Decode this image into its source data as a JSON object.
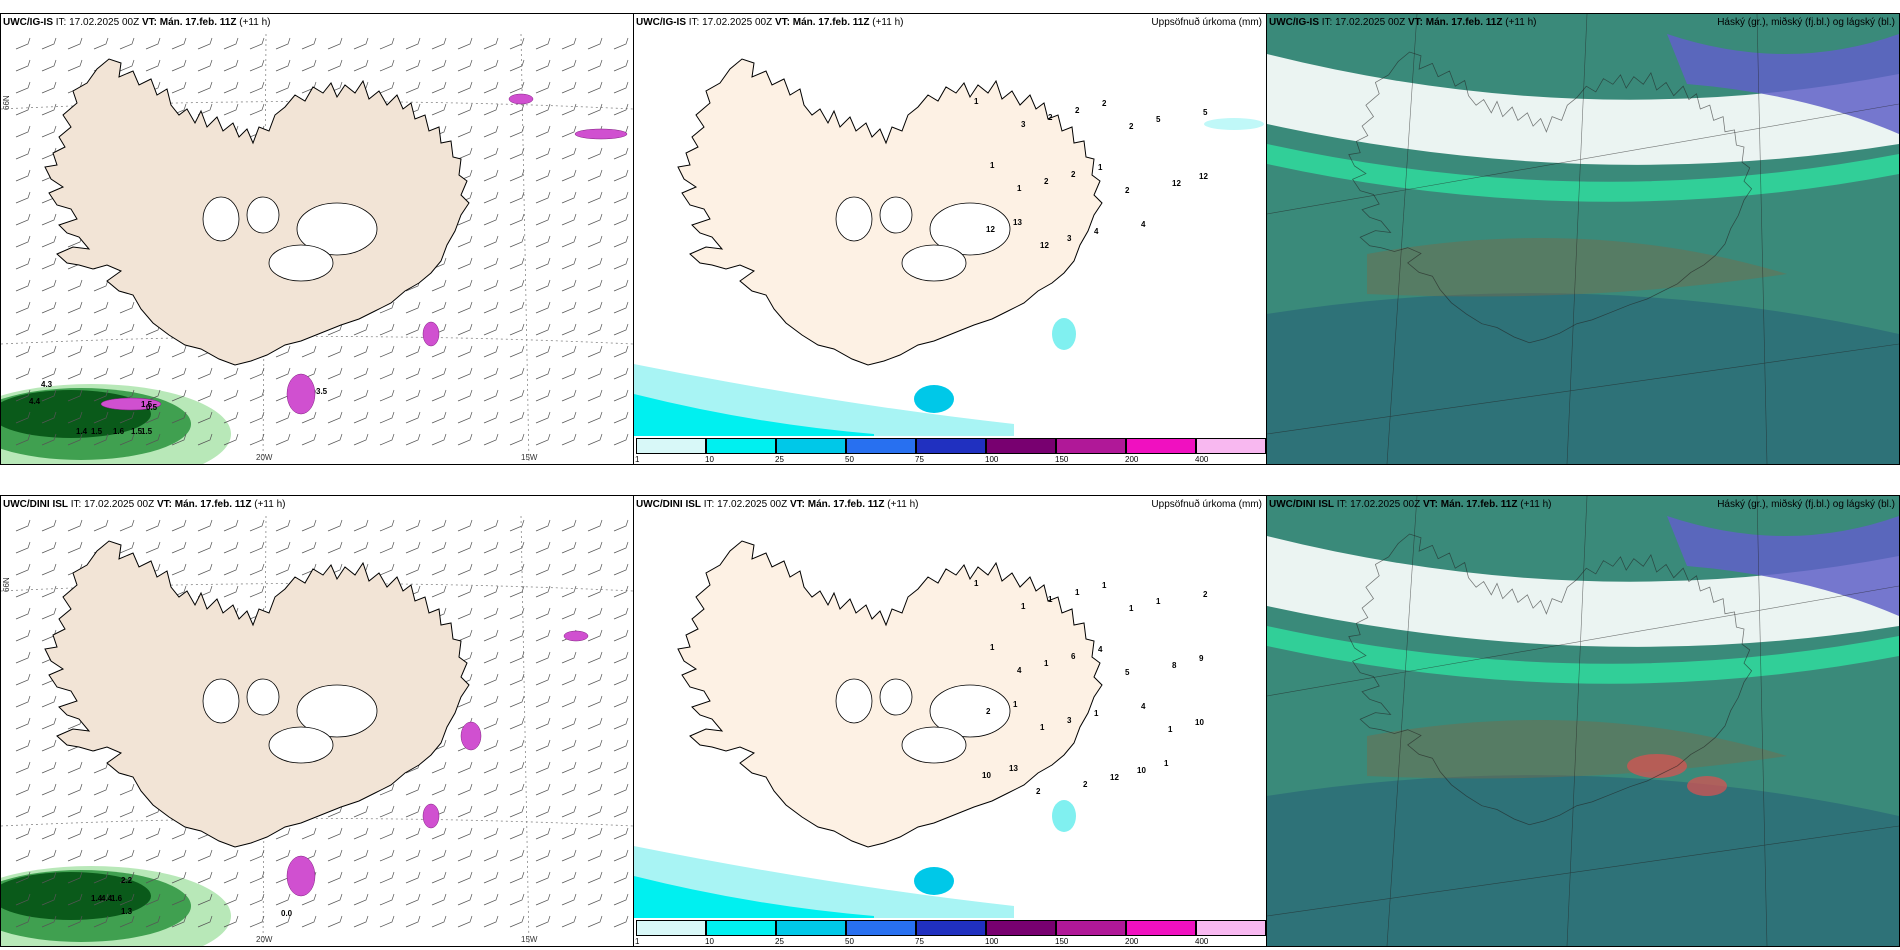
{
  "panels": [
    {
      "model": "UWC/IG-IS",
      "it": "IT: 17.02.2025 00Z",
      "vt_label": "VT:",
      "vt": "Mán. 17.feb. 11Z",
      "lead": "(+11 h)",
      "right": ""
    },
    {
      "model": "UWC/IG-IS",
      "it": "IT: 17.02.2025 00Z",
      "vt_label": "VT:",
      "vt": "Mán. 17.feb. 11Z",
      "lead": "(+11 h)",
      "right": "Uppsöfnuð úrkoma (mm)"
    },
    {
      "model": "UWC/IG-IS",
      "it": "IT: 17.02.2025 00Z",
      "vt_label": "VT:",
      "vt": "Mán. 17.feb. 11Z",
      "lead": "(+11 h)",
      "right": "Háský (gr.), miðský (fj.bl.) og lágský (bl.)"
    },
    {
      "model": "UWC/DINI ISL",
      "it": "IT: 17.02.2025 00Z",
      "vt_label": "VT:",
      "vt": "Mán. 17.feb. 11Z",
      "lead": "(+11 h)",
      "right": ""
    },
    {
      "model": "UWC/DINI ISL",
      "it": "IT: 17.02.2025 00Z",
      "vt_label": "VT:",
      "vt": "Mán. 17.feb. 11Z",
      "lead": "(+11 h)",
      "right": "Uppsöfnuð úrkoma (mm)"
    },
    {
      "model": "UWC/DINI ISL",
      "it": "IT: 17.02.2025 00Z",
      "vt_label": "VT:",
      "vt": "Mán. 17.feb. 11Z",
      "lead": "(+11 h)",
      "right": "Háský (gr.), miðský (fj.bl.) og lágský (bl.)"
    }
  ],
  "axis_labels": {
    "lat66": "66N",
    "lon20": "20W",
    "lon15": "15W"
  },
  "colorbar": {
    "labels": [
      "1",
      "10",
      "25",
      "50",
      "75",
      "100",
      "150",
      "200",
      "400"
    ],
    "colors": [
      "#d8f8f8",
      "#00f0f0",
      "#00c8e8",
      "#2870f0",
      "#2030c0",
      "#780070",
      "#b01898",
      "#f010c0",
      "#f8b8f0"
    ]
  },
  "wind_values": {
    "top": [
      "4.3",
      "1.5",
      "4.4",
      "0.5",
      "1.4",
      "1.5",
      "1.6",
      "1.5",
      "1.5",
      "3.5"
    ],
    "bottom": [
      "2.2",
      "1.6",
      "1.4",
      "4.4",
      "1.3",
      "0.0"
    ]
  },
  "precip_values": {
    "top": [
      "1",
      "3",
      "2",
      "2",
      "2",
      "2",
      "5",
      "5",
      "1",
      "1",
      "2",
      "2",
      "1",
      "2",
      "12",
      "12",
      "12",
      "13",
      "12",
      "3",
      "4",
      "4"
    ],
    "bottom": [
      "1",
      "1",
      "1",
      "1",
      "1",
      "1",
      "1",
      "2",
      "1",
      "4",
      "1",
      "6",
      "4",
      "5",
      "8",
      "9",
      "2",
      "1",
      "1",
      "3",
      "1",
      "4",
      "1",
      "10",
      "10",
      "13",
      "2",
      "2",
      "12",
      "10",
      "1"
    ]
  },
  "colors": {
    "land": "#f2e4d6",
    "sea": "#ffffff",
    "ice": "#ffffff",
    "green_dark": "#0a5a1a",
    "green_mid": "#40a050",
    "green_light": "#b8e8b8",
    "magenta": "#d050d0",
    "cyan": "#80f0f0",
    "cloud_teal": "#3a8a7a",
    "cloud_purple": "#6060c8",
    "cloud_white": "#ffffff"
  }
}
